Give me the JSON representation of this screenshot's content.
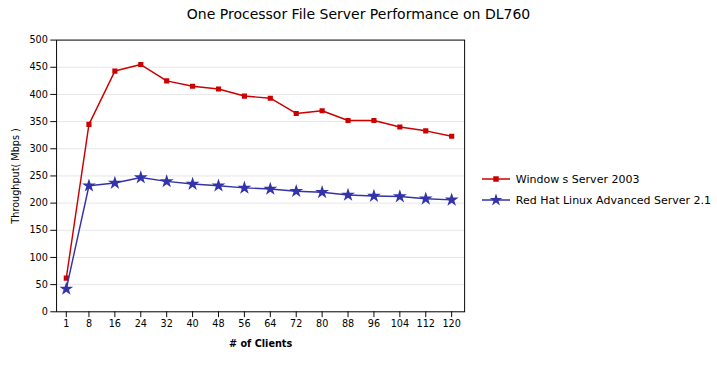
{
  "chart_data": {
    "type": "line",
    "title": "One Processor File Server Performance on DL760",
    "xlabel": "# of Clients",
    "ylabel": "Throughput( Mbps )",
    "x": [
      1,
      8,
      16,
      24,
      32,
      40,
      48,
      56,
      64,
      72,
      80,
      88,
      96,
      104,
      112,
      120
    ],
    "series": [
      {
        "name": "Window s Server 2003",
        "color": "#cc0000",
        "marker": "square",
        "values": [
          62,
          345,
          443,
          455,
          425,
          415,
          410,
          397,
          393,
          365,
          370,
          352,
          352,
          340,
          333,
          323
        ]
      },
      {
        "name": "Red Hat Linux Advanced Server 2.1",
        "color": "#3333aa",
        "marker": "star",
        "values": [
          42,
          232,
          237,
          247,
          240,
          235,
          232,
          228,
          226,
          222,
          220,
          215,
          213,
          212,
          208,
          206
        ]
      }
    ],
    "xlim": [
      -2,
      124
    ],
    "xticks": [
      1,
      8,
      16,
      24,
      32,
      40,
      48,
      56,
      64,
      72,
      80,
      88,
      96,
      104,
      112,
      120
    ],
    "ylim": [
      0,
      500
    ],
    "yticks": [
      0,
      50,
      100,
      150,
      200,
      250,
      300,
      350,
      400,
      450,
      500
    ],
    "grid": "y",
    "legend": "right"
  }
}
